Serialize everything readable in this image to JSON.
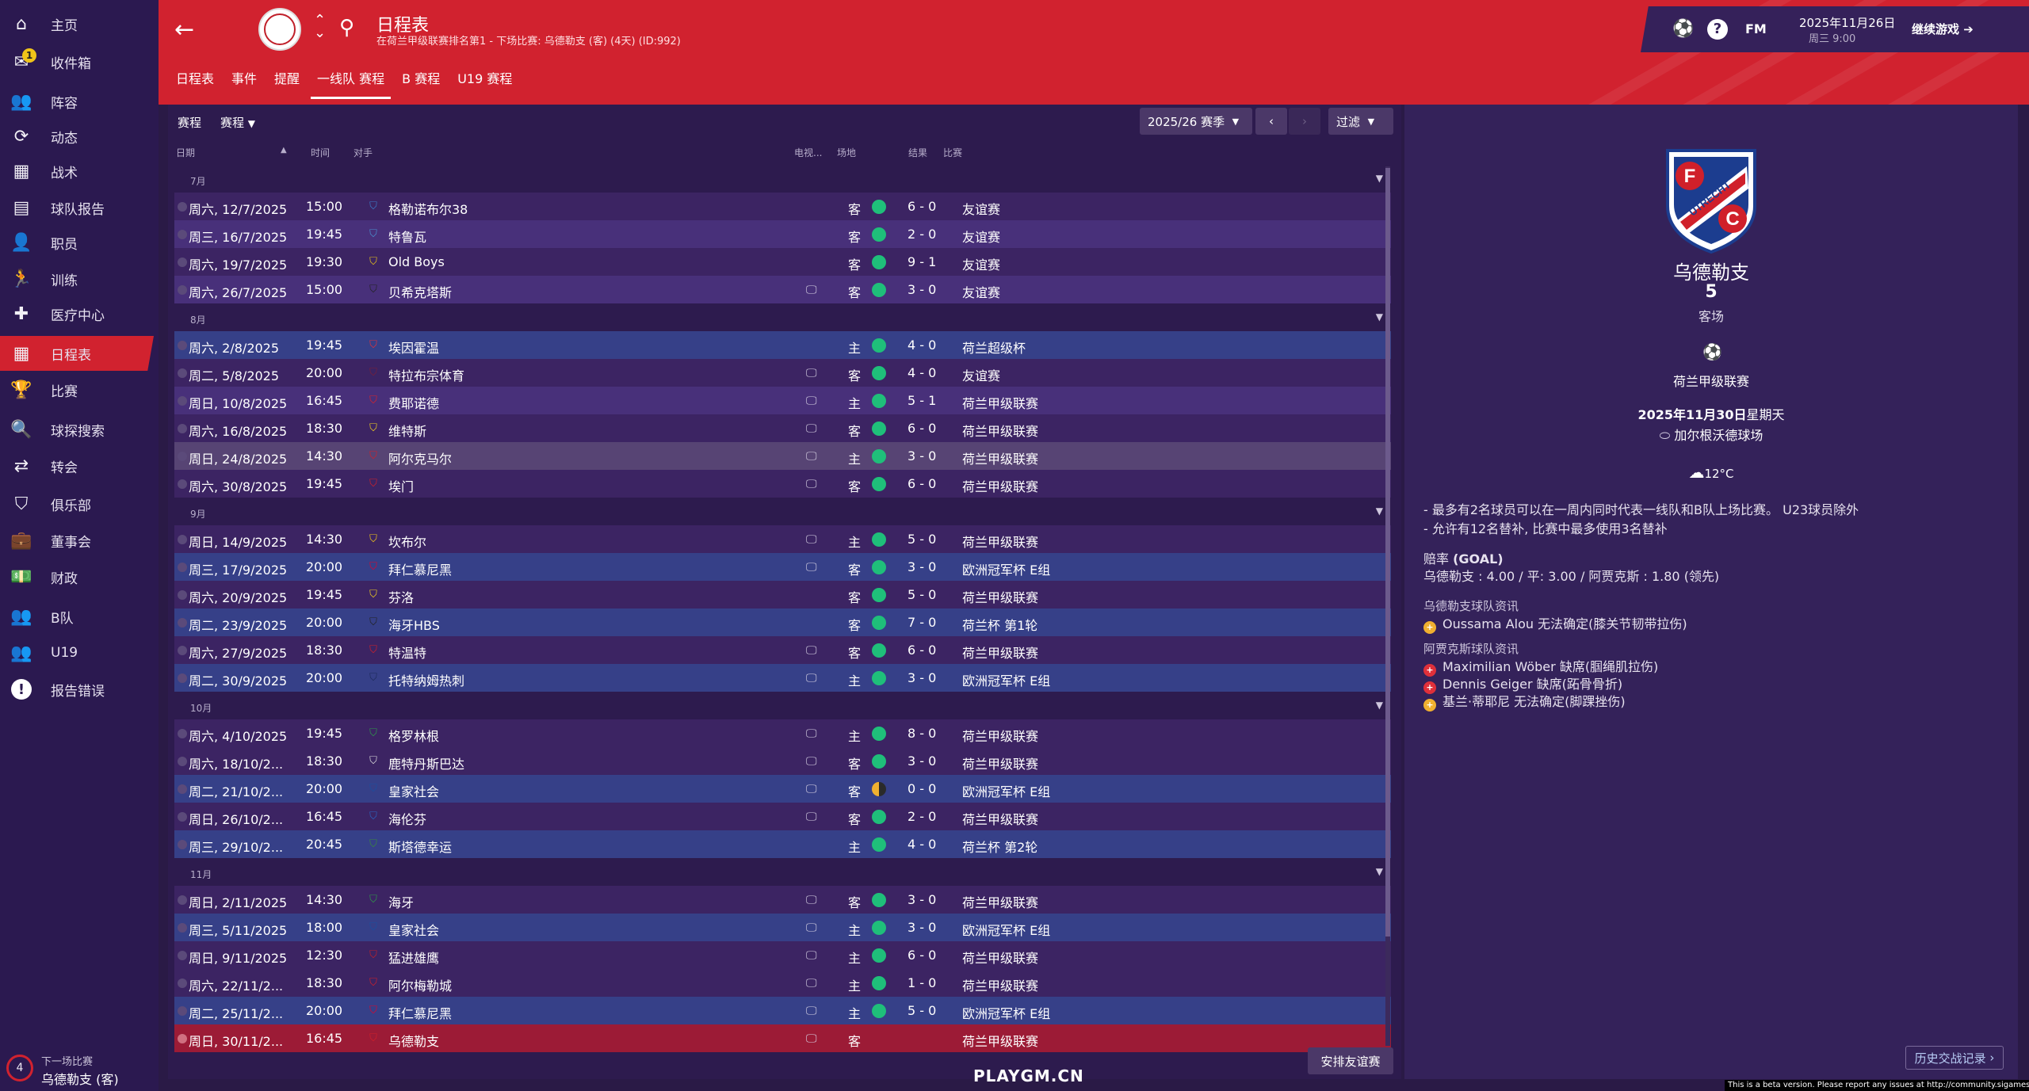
{
  "sidebar": {
    "items": [
      {
        "label": "主页",
        "icon": "home-icon",
        "glyph": "⌂"
      },
      {
        "label": "收件箱",
        "icon": "inbox-icon",
        "glyph": "✉",
        "badge": "1"
      },
      {
        "label": "阵容",
        "icon": "squad-icon",
        "glyph": "👥"
      },
      {
        "label": "动态",
        "icon": "dynamics-icon",
        "glyph": "⟳"
      },
      {
        "label": "战术",
        "icon": "tactics-icon",
        "glyph": "▦"
      },
      {
        "label": "球队报告",
        "icon": "report-icon",
        "glyph": "▤"
      },
      {
        "label": "职员",
        "icon": "staff-icon",
        "glyph": "👤"
      },
      {
        "label": "训练",
        "icon": "training-icon",
        "glyph": "🏃"
      },
      {
        "label": "医疗中心",
        "icon": "medical-icon",
        "glyph": "✚"
      },
      {
        "label": "日程表",
        "icon": "calendar-icon",
        "glyph": "▦",
        "active": true
      },
      {
        "label": "比赛",
        "icon": "trophy-icon",
        "glyph": "🏆"
      },
      {
        "label": "球探搜索",
        "icon": "scout-icon",
        "glyph": "🔍"
      },
      {
        "label": "转会",
        "icon": "transfer-icon",
        "glyph": "⇄"
      },
      {
        "label": "俱乐部",
        "icon": "club-icon",
        "glyph": "⛉"
      },
      {
        "label": "董事会",
        "icon": "board-icon",
        "glyph": "💼"
      },
      {
        "label": "财政",
        "icon": "finance-icon",
        "glyph": "💵"
      },
      {
        "label": "B队",
        "icon": "b-team-icon",
        "glyph": "👥"
      },
      {
        "label": "U19",
        "icon": "u19-icon",
        "glyph": "👥"
      },
      {
        "label": "报告错误",
        "icon": "bug-report-icon",
        "glyph": "!"
      }
    ],
    "next_match": {
      "label": "下一场比赛",
      "value": "乌德勒支 (客)",
      "days": "4"
    }
  },
  "header": {
    "title": "日程表",
    "subtitle": "在荷兰甲级联赛排名第1 - 下场比赛: 乌德勒支 (客) (4天) (ID:992)",
    "tabs": [
      {
        "label": "日程表"
      },
      {
        "label": "事件"
      },
      {
        "label": "提醒"
      },
      {
        "label": "一线队 赛程",
        "active": true
      },
      {
        "label": "B 赛程"
      },
      {
        "label": "U19 赛程"
      }
    ]
  },
  "topbar": {
    "fm": "FM",
    "help": "?",
    "date": "2025年11月26日",
    "day": "周三 9:00",
    "continue": "继续游戏"
  },
  "toolbar": {
    "fixtures_label": "赛程",
    "fixtures_select": "赛程",
    "season": "2025/26 赛季",
    "filter": "过滤"
  },
  "columns": {
    "date": "日期",
    "time": "时间",
    "opponent": "对手",
    "tv": "电视...",
    "venue": "场地",
    "result": "结果",
    "competition": "比赛"
  },
  "months": [
    {
      "name": "7月",
      "matches": [
        {
          "date": "周六, 12/7/2025",
          "time": "15:00",
          "opp": "格勒诺布尔38",
          "tv": false,
          "venue": "客",
          "score": "6 - 0",
          "comp": "友谊赛",
          "row": "dark",
          "crest": "#3b7cc9"
        },
        {
          "date": "周三, 16/7/2025",
          "time": "19:45",
          "opp": "特鲁瓦",
          "tv": false,
          "venue": "客",
          "score": "2 - 0",
          "comp": "友谊赛",
          "row": "light",
          "crest": "#4a90d0"
        },
        {
          "date": "周六, 19/7/2025",
          "time": "19:30",
          "opp": "Old Boys",
          "tv": false,
          "venue": "客",
          "score": "9 - 1",
          "comp": "友谊赛",
          "row": "dark",
          "crest": "#e6c21b"
        },
        {
          "date": "周六, 26/7/2025",
          "time": "15:00",
          "opp": "贝希克塔斯",
          "tv": true,
          "venue": "客",
          "score": "3 - 0",
          "comp": "友谊赛",
          "row": "light",
          "crest": "#222222"
        }
      ]
    },
    {
      "name": "8月",
      "matches": [
        {
          "date": "周六, 2/8/2025",
          "time": "19:45",
          "opp": "埃因霍温",
          "tv": false,
          "venue": "主",
          "score": "4 - 0",
          "comp": "荷兰超级杯",
          "row": "blue",
          "crest": "#e0303a"
        },
        {
          "date": "周二, 5/8/2025",
          "time": "20:00",
          "opp": "特拉布宗体育",
          "tv": true,
          "venue": "客",
          "score": "4 - 0",
          "comp": "友谊赛",
          "row": "dark",
          "crest": "#7a2038"
        },
        {
          "date": "周日, 10/8/2025",
          "time": "16:45",
          "opp": "费耶诺德",
          "tv": true,
          "venue": "主",
          "score": "5 - 1",
          "comp": "荷兰甲级联赛",
          "row": "light",
          "crest": "#d8232a"
        },
        {
          "date": "周六, 16/8/2025",
          "time": "18:30",
          "opp": "维特斯",
          "tv": true,
          "venue": "客",
          "score": "6 - 0",
          "comp": "荷兰甲级联赛",
          "row": "dark",
          "crest": "#f0d020"
        },
        {
          "date": "周日, 24/8/2025",
          "time": "14:30",
          "opp": "阿尔克马尔",
          "tv": true,
          "venue": "主",
          "score": "3 - 0",
          "comp": "荷兰甲级联赛",
          "row": "hl",
          "crest": "#d0202a"
        },
        {
          "date": "周六, 30/8/2025",
          "time": "19:45",
          "opp": "埃门",
          "tv": true,
          "venue": "客",
          "score": "6 - 0",
          "comp": "荷兰甲级联赛",
          "row": "dark",
          "crest": "#d0202a"
        }
      ]
    },
    {
      "name": "9月",
      "matches": [
        {
          "date": "周日, 14/9/2025",
          "time": "14:30",
          "opp": "坎布尔",
          "tv": true,
          "venue": "主",
          "score": "5 - 0",
          "comp": "荷兰甲级联赛",
          "row": "dark",
          "crest": "#f0c419"
        },
        {
          "date": "周三, 17/9/2025",
          "time": "20:00",
          "opp": "拜仁慕尼黑",
          "tv": true,
          "venue": "客",
          "score": "3 - 0",
          "comp": "欧洲冠军杯 E组",
          "row": "blue",
          "crest": "#dc052d"
        },
        {
          "date": "周六, 20/9/2025",
          "time": "19:45",
          "opp": "芬洛",
          "tv": false,
          "venue": "客",
          "score": "5 - 0",
          "comp": "荷兰甲级联赛",
          "row": "dark",
          "crest": "#f0d020"
        },
        {
          "date": "周二, 23/9/2025",
          "time": "20:00",
          "opp": "海牙HBS",
          "tv": false,
          "venue": "客",
          "score": "7 - 0",
          "comp": "荷兰杯 第1轮",
          "row": "blue",
          "crest": "#222222"
        },
        {
          "date": "周六, 27/9/2025",
          "time": "18:30",
          "opp": "特温特",
          "tv": true,
          "venue": "客",
          "score": "6 - 0",
          "comp": "荷兰甲级联赛",
          "row": "dark",
          "crest": "#d0202a"
        },
        {
          "date": "周二, 30/9/2025",
          "time": "20:00",
          "opp": "托特纳姆热刺",
          "tv": true,
          "venue": "主",
          "score": "3 - 0",
          "comp": "欧洲冠军杯 E组",
          "row": "blue",
          "crest": "#1c2a5a"
        }
      ]
    },
    {
      "name": "10月",
      "matches": [
        {
          "date": "周六, 4/10/2025",
          "time": "19:45",
          "opp": "格罗林根",
          "tv": true,
          "venue": "主",
          "score": "8 - 0",
          "comp": "荷兰甲级联赛",
          "row": "dark",
          "crest": "#2e9a4a"
        },
        {
          "date": "周六, 18/10/2...",
          "time": "18:30",
          "opp": "鹿特丹斯巴达",
          "tv": true,
          "venue": "客",
          "score": "3 - 0",
          "comp": "荷兰甲级联赛",
          "row": "dark",
          "crest": "#dddddd"
        },
        {
          "date": "周二, 21/10/2...",
          "time": "20:00",
          "opp": "皇家社会",
          "tv": true,
          "venue": "客",
          "score": "0 - 0",
          "comp": "欧洲冠军杯 E组",
          "row": "blue",
          "crest": "#1a4fa0",
          "draw": true
        },
        {
          "date": "周日, 26/10/2...",
          "time": "16:45",
          "opp": "海伦芬",
          "tv": true,
          "venue": "客",
          "score": "2 - 0",
          "comp": "荷兰甲级联赛",
          "row": "dark",
          "crest": "#2a64c0"
        },
        {
          "date": "周三, 29/10/2...",
          "time": "20:45",
          "opp": "斯塔德幸运",
          "tv": false,
          "venue": "主",
          "score": "4 - 0",
          "comp": "荷兰杯 第2轮",
          "row": "blue",
          "crest": "#3a8a3a"
        }
      ]
    },
    {
      "name": "11月",
      "matches": [
        {
          "date": "周日, 2/11/2025",
          "time": "14:30",
          "opp": "海牙",
          "tv": true,
          "venue": "客",
          "score": "3 - 0",
          "comp": "荷兰甲级联赛",
          "row": "dark",
          "crest": "#2e9a4a"
        },
        {
          "date": "周三, 5/11/2025",
          "time": "18:00",
          "opp": "皇家社会",
          "tv": true,
          "venue": "主",
          "score": "3 - 0",
          "comp": "欧洲冠军杯 E组",
          "row": "blue",
          "crest": "#1a4fa0"
        },
        {
          "date": "周日, 9/11/2025",
          "time": "12:30",
          "opp": "猛进雄鹰",
          "tv": true,
          "venue": "主",
          "score": "6 - 0",
          "comp": "荷兰甲级联赛",
          "row": "dark",
          "crest": "#c0202a"
        },
        {
          "date": "周六, 22/11/2...",
          "time": "18:30",
          "opp": "阿尔梅勒城",
          "tv": true,
          "venue": "主",
          "score": "1 - 0",
          "comp": "荷兰甲级联赛",
          "row": "dark",
          "crest": "#d0202a"
        },
        {
          "date": "周二, 25/11/2...",
          "time": "20:00",
          "opp": "拜仁慕尼黑",
          "tv": true,
          "venue": "主",
          "score": "5 - 0",
          "comp": "欧洲冠军杯 E组",
          "row": "blue",
          "crest": "#dc052d"
        },
        {
          "date": "周日, 30/11/2...",
          "time": "16:45",
          "opp": "乌德勒支",
          "tv": true,
          "venue": "客",
          "score": "",
          "comp": "荷兰甲级联赛",
          "row": "red",
          "crest": "#d0202a",
          "upcoming": true
        }
      ]
    }
  ],
  "friendly_button": "安排友谊赛",
  "detail": {
    "crest_letters": {
      "f": "F",
      "c": "C",
      "word": "UTRECHT"
    },
    "opponent": "乌德勒支",
    "position": "5",
    "venue": "客场",
    "competition": "荷兰甲级联赛",
    "date_bold": "2025年11月30日",
    "date_rest": "星期天",
    "stadium": "加尔根沃德球场",
    "weather": "12°C",
    "rules": [
      "- 最多有2名球员可以在一周内同时代表一线队和B队上场比赛。 U23球员除外",
      "- 允许有12名替补, 比赛中最多使用3名替补"
    ],
    "odds_label": "赔率",
    "odds_source": "(GOAL)",
    "odds_value": "乌德勒支 : 4.00 / 平: 3.00 / 阿贾克斯 : 1.80 (领先)",
    "home_news_title": "乌德勒支球队资讯",
    "home_news": [
      {
        "text": "Oussama Alou 无法确定(膝关节韧带拉伤)",
        "type": "doubt"
      }
    ],
    "away_news_title": "阿贾克斯球队资讯",
    "away_news": [
      {
        "text": "Maximilian Wöber 缺席(腘绳肌拉伤)",
        "type": "out"
      },
      {
        "text": "Dennis Geiger 缺席(跖骨骨折)",
        "type": "out"
      },
      {
        "text": "基兰·蒂耶尼 无法确定(脚踝挫伤)",
        "type": "doubt"
      }
    ],
    "h2h_button": "历史交战记录"
  },
  "watermark": "PLAYGM.CN",
  "beta_notice": "This is a beta version. Please report any issues at http://community.sigames.com/",
  "colors": {
    "win": "#1fbf7a",
    "draw": "#f0b030",
    "accent": "#d1222f"
  }
}
